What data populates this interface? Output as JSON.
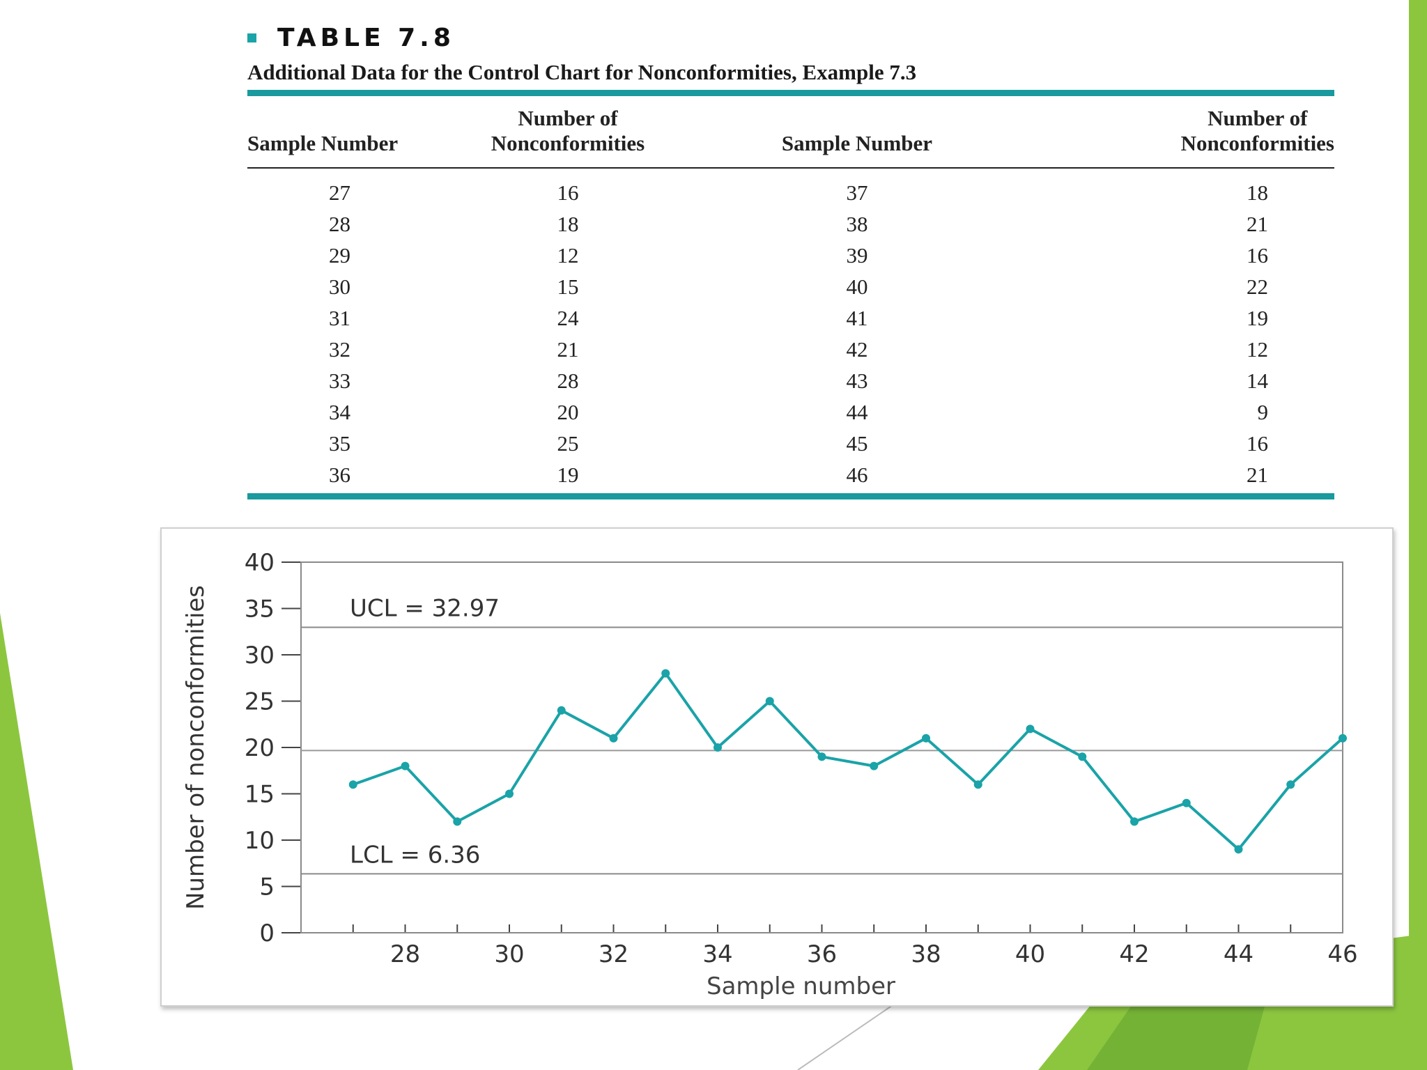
{
  "colors": {
    "accent_green": "#8cc63f",
    "accent_green_dark": "#6ea82e",
    "teal": "#1aa3a8",
    "rule_teal": "#189a9e"
  },
  "table": {
    "label": "TABLE 7.8",
    "caption": "Additional Data for the Control Chart for Nonconformities, Example 7.3",
    "headers": {
      "sample_number": "Sample Number",
      "nonconf_line1": "Number of",
      "nonconf_line2": "Nonconformities"
    },
    "rows": [
      [
        "27",
        "16",
        "37",
        "18"
      ],
      [
        "28",
        "18",
        "38",
        "21"
      ],
      [
        "29",
        "12",
        "39",
        "16"
      ],
      [
        "30",
        "15",
        "40",
        "22"
      ],
      [
        "31",
        "24",
        "41",
        "19"
      ],
      [
        "32",
        "21",
        "42",
        "12"
      ],
      [
        "33",
        "28",
        "43",
        "14"
      ],
      [
        "34",
        "20",
        "44",
        "9"
      ],
      [
        "35",
        "25",
        "45",
        "16"
      ],
      [
        "36",
        "19",
        "46",
        "21"
      ]
    ]
  },
  "chart_data": {
    "type": "line",
    "xlabel": "Sample number",
    "ylabel": "Number of nonconformities",
    "x": [
      27,
      28,
      29,
      30,
      31,
      32,
      33,
      34,
      35,
      36,
      37,
      38,
      39,
      40,
      41,
      42,
      43,
      44,
      45,
      46
    ],
    "series": [
      {
        "values": [
          16,
          18,
          12,
          15,
          24,
          21,
          28,
          20,
          25,
          19,
          18,
          21,
          16,
          22,
          19,
          12,
          14,
          9,
          16,
          21
        ]
      }
    ],
    "center_line": 19.67,
    "control_limits": [
      {
        "label": "UCL = 32.97",
        "value": 32.97
      },
      {
        "label": "LCL = 6.36",
        "value": 6.36
      }
    ],
    "ylim": [
      0,
      40
    ],
    "yticks": [
      0,
      5,
      10,
      15,
      20,
      25,
      30,
      35,
      40
    ],
    "xlim": [
      26,
      46
    ],
    "xticks": [
      28,
      30,
      32,
      34,
      36,
      38,
      40,
      42,
      44,
      46
    ],
    "grid": false
  }
}
